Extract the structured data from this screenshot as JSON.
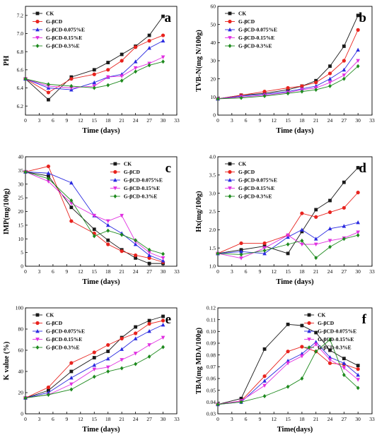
{
  "figure": {
    "series_styles": [
      {
        "name": "CK",
        "color": "#1a1a1a",
        "marker": "square"
      },
      {
        "name": "G-βCD",
        "color": "#e8231e",
        "marker": "circle"
      },
      {
        "name": "G-βCD-0.075%E",
        "color": "#2a2ae0",
        "marker": "triangle-up"
      },
      {
        "name": "G-βCD-0.15%E",
        "color": "#e030e0",
        "marker": "triangle-down"
      },
      {
        "name": "G-βCD-0.3%E",
        "color": "#1e8a1e",
        "marker": "diamond"
      }
    ]
  },
  "chart_data": [
    {
      "type": "line",
      "panel_label": "a",
      "xlabel": "Time (days)",
      "ylabel": "PH",
      "xlim": [
        0,
        33
      ],
      "ylim": [
        6.1,
        7.3
      ],
      "xticks": [
        0,
        3,
        6,
        9,
        12,
        15,
        18,
        21,
        24,
        27,
        30,
        33
      ],
      "yticks": [
        6.2,
        6.4,
        6.6,
        6.8,
        7.0,
        7.2
      ],
      "x": [
        0,
        5,
        10,
        15,
        18,
        21,
        24,
        27,
        30
      ],
      "legend_position": "top-left",
      "series": [
        {
          "name": "CK",
          "values": [
            6.5,
            6.27,
            6.52,
            6.6,
            6.68,
            6.77,
            6.86,
            6.98,
            7.19
          ]
        },
        {
          "name": "G-βCD",
          "values": [
            6.5,
            6.35,
            6.5,
            6.55,
            6.6,
            6.7,
            6.85,
            6.92,
            6.98
          ]
        },
        {
          "name": "G-βCD-0.075%E",
          "values": [
            6.5,
            6.4,
            6.38,
            6.46,
            6.52,
            6.55,
            6.69,
            6.84,
            6.92
          ]
        },
        {
          "name": "G-βCD-0.15%E",
          "values": [
            6.5,
            6.42,
            6.4,
            6.42,
            6.52,
            6.53,
            6.62,
            6.67,
            6.74
          ]
        },
        {
          "name": "G-βCD-0.3%E",
          "values": [
            6.5,
            6.44,
            6.42,
            6.4,
            6.43,
            6.48,
            6.58,
            6.65,
            6.69
          ]
        }
      ]
    },
    {
      "type": "line",
      "panel_label": "b",
      "xlabel": "Time (days)",
      "ylabel": "TVB-N(mg N/100g)",
      "xlim": [
        0,
        33
      ],
      "ylim": [
        0,
        60
      ],
      "xticks": [
        0,
        3,
        6,
        9,
        12,
        15,
        18,
        21,
        24,
        27,
        30,
        33
      ],
      "yticks": [
        0,
        10,
        20,
        30,
        40,
        50,
        60
      ],
      "x": [
        0,
        5,
        10,
        15,
        18,
        21,
        24,
        27,
        30
      ],
      "legend_position": "top-left",
      "series": [
        {
          "name": "CK",
          "values": [
            9,
            11,
            12,
            14,
            16,
            19,
            27,
            38,
            55
          ]
        },
        {
          "name": "G-βCD",
          "values": [
            9,
            11,
            13,
            15,
            16,
            18,
            23,
            30,
            47
          ]
        },
        {
          "name": "G-βCD-0.075%E",
          "values": [
            9,
            10.5,
            11.5,
            13,
            14.5,
            16,
            20,
            25,
            36
          ]
        },
        {
          "name": "G-βCD-0.15%E",
          "values": [
            9,
            10,
            11,
            12.5,
            14,
            15,
            18,
            22,
            30
          ]
        },
        {
          "name": "G-βCD-0.3%E",
          "values": [
            9,
            9.5,
            10.5,
            12,
            13,
            14,
            16,
            20,
            27
          ]
        }
      ]
    },
    {
      "type": "line",
      "panel_label": "c",
      "xlabel": "Time (days)",
      "ylabel": "IMP(mg/100g)",
      "xlim": [
        0,
        33
      ],
      "ylim": [
        0,
        40
      ],
      "xticks": [
        0,
        3,
        6,
        9,
        12,
        15,
        18,
        21,
        24,
        27,
        30,
        33
      ],
      "yticks": [
        0,
        5,
        10,
        15,
        20,
        25,
        30,
        35,
        40
      ],
      "x": [
        0,
        5,
        10,
        15,
        18,
        21,
        24,
        27,
        30
      ],
      "legend_position": "top-right",
      "series": [
        {
          "name": "CK",
          "values": [
            34.5,
            33,
            21.5,
            13.5,
            9.5,
            6,
            3,
            1,
            1
          ]
        },
        {
          "name": "G-βCD",
          "values": [
            34.5,
            36.5,
            16.5,
            12,
            8,
            5.5,
            4,
            3,
            1.5
          ]
        },
        {
          "name": "G-βCD-0.075%E",
          "values": [
            34.5,
            34,
            30.5,
            18.5,
            15,
            12,
            8,
            4,
            2
          ]
        },
        {
          "name": "G-βCD-0.15%E",
          "values": [
            34.5,
            31,
            23,
            18.5,
            16.5,
            18.5,
            9,
            5,
            3
          ]
        },
        {
          "name": "G-βCD-0.3%E",
          "values": [
            34.5,
            32,
            24,
            11,
            13,
            11.5,
            9.5,
            6,
            4.5
          ]
        }
      ]
    },
    {
      "type": "line",
      "panel_label": "d",
      "xlabel": "Time (days)",
      "ylabel": "Hx(mg/100g)",
      "xlim": [
        0,
        33
      ],
      "ylim": [
        1.0,
        4.0
      ],
      "xticks": [
        0,
        3,
        6,
        9,
        12,
        15,
        18,
        21,
        24,
        27,
        30,
        33
      ],
      "yticks": [
        1.0,
        1.5,
        2.0,
        2.5,
        3.0,
        3.5,
        4.0
      ],
      "x": [
        0,
        5,
        10,
        15,
        18,
        21,
        24,
        27,
        30
      ],
      "legend_position": "top-left",
      "series": [
        {
          "name": "CK",
          "values": [
            1.35,
            1.45,
            1.55,
            1.35,
            1.95,
            2.55,
            2.8,
            3.3,
            3.7
          ]
        },
        {
          "name": "G-βCD",
          "values": [
            1.35,
            1.63,
            1.63,
            1.85,
            2.45,
            2.35,
            2.48,
            2.6,
            3.02
          ]
        },
        {
          "name": "G-βCD-0.075%E",
          "values": [
            1.35,
            1.4,
            1.35,
            1.8,
            2.0,
            1.75,
            2.03,
            2.1,
            2.2
          ]
        },
        {
          "name": "G-βCD-0.15%E",
          "values": [
            1.35,
            1.22,
            1.5,
            1.85,
            1.6,
            1.6,
            1.7,
            1.77,
            1.93
          ]
        },
        {
          "name": "G-βCD-0.3%E",
          "values": [
            1.35,
            1.32,
            1.43,
            1.6,
            1.7,
            1.23,
            1.53,
            1.75,
            1.85
          ]
        }
      ]
    },
    {
      "type": "line",
      "panel_label": "e",
      "xlabel": "Time (days)",
      "ylabel": "K value (%)",
      "xlim": [
        0,
        33
      ],
      "ylim": [
        0,
        100
      ],
      "xticks": [
        0,
        3,
        6,
        9,
        12,
        15,
        18,
        21,
        24,
        27,
        30,
        33
      ],
      "yticks": [
        0,
        20,
        40,
        60,
        80,
        100
      ],
      "x": [
        0,
        5,
        10,
        15,
        18,
        21,
        24,
        27,
        30
      ],
      "legend_position": "top-left",
      "series": [
        {
          "name": "CK",
          "values": [
            15,
            22,
            40,
            53,
            59,
            72,
            82,
            88,
            92
          ]
        },
        {
          "name": "G-βCD",
          "values": [
            15,
            25,
            48,
            58,
            65,
            71,
            76,
            85,
            88
          ]
        },
        {
          "name": "G-βCD-0.075%E",
          "values": [
            15,
            20,
            34,
            46,
            52,
            61,
            71,
            78,
            84
          ]
        },
        {
          "name": "G-βCD-0.15%E",
          "values": [
            15,
            18,
            28,
            42,
            44,
            51,
            57,
            65,
            72
          ]
        },
        {
          "name": "G-βCD-0.3%E",
          "values": [
            15,
            18,
            23,
            35,
            40,
            43,
            47,
            54,
            63
          ]
        }
      ]
    },
    {
      "type": "line",
      "panel_label": "f",
      "xlabel": "Time(days)",
      "ylabel": "TBA(mg MDA/100g)",
      "xlim": [
        0,
        33
      ],
      "ylim": [
        0.03,
        0.12
      ],
      "xticks": [
        0,
        3,
        6,
        9,
        12,
        15,
        18,
        21,
        24,
        27,
        30,
        33
      ],
      "yticks": [
        0.03,
        0.04,
        0.05,
        0.06,
        0.07,
        0.08,
        0.09,
        0.1,
        0.11,
        0.12
      ],
      "x": [
        0,
        5,
        10,
        15,
        18,
        21,
        24,
        27,
        30
      ],
      "legend_position": "top-right",
      "series": [
        {
          "name": "CK",
          "values": [
            0.038,
            0.043,
            0.085,
            0.106,
            0.105,
            0.099,
            0.084,
            0.077,
            0.071
          ]
        },
        {
          "name": "G-βCD",
          "values": [
            0.038,
            0.041,
            0.062,
            0.083,
            0.087,
            0.083,
            0.073,
            0.072,
            0.068
          ]
        },
        {
          "name": "G-βCD-0.075%E",
          "values": [
            0.038,
            0.04,
            0.058,
            0.075,
            0.081,
            0.091,
            0.078,
            0.073,
            0.063
          ]
        },
        {
          "name": "G-βCD-0.15%E",
          "values": [
            0.038,
            0.041,
            0.054,
            0.073,
            0.079,
            0.089,
            0.076,
            0.069,
            0.059
          ]
        },
        {
          "name": "G-βCD-0.3%E",
          "values": [
            0.038,
            0.04,
            0.045,
            0.053,
            0.06,
            0.083,
            0.093,
            0.063,
            0.052
          ]
        }
      ]
    }
  ]
}
